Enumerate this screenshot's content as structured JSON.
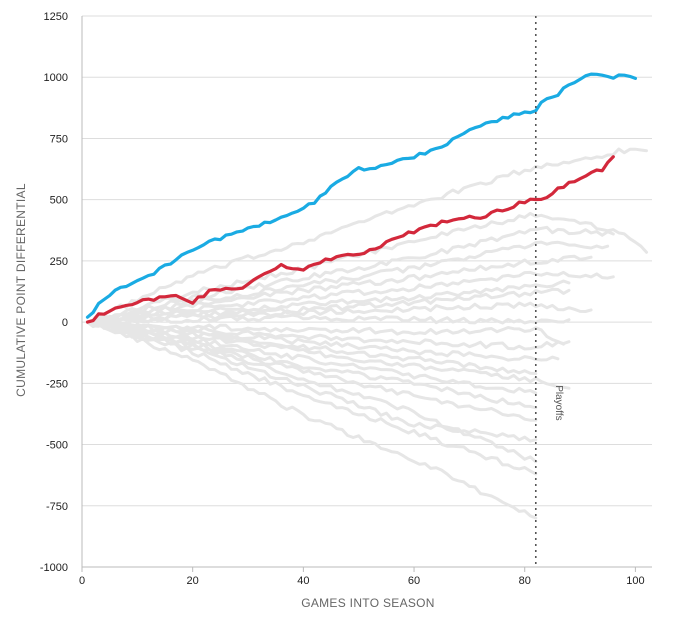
{
  "chart_data": {
    "type": "line",
    "title": "",
    "xlabel": "GAMES INTO SEASON",
    "ylabel": "CUMULATIVE POINT DIFFERENTIAL",
    "xlim": [
      0,
      103
    ],
    "ylim": [
      -1000,
      1250
    ],
    "xticks": [
      0,
      20,
      40,
      60,
      80,
      100
    ],
    "yticks": [
      1250,
      1000,
      750,
      500,
      250,
      0,
      -250,
      -500,
      -750,
      -1000
    ],
    "grid": true,
    "annotation": {
      "label": "Playoffs",
      "x": 82
    },
    "colors": {
      "highlight_blue": "#1aabe3",
      "highlight_red": "#d3283b",
      "background_series": "#e6e6e6",
      "playoff_line": "#555555"
    },
    "highlight_series": [
      {
        "name": "blue-team",
        "color": "#1aabe3",
        "x": [
          1,
          4,
          8,
          12,
          16,
          20,
          26,
          32,
          38,
          42,
          46,
          50,
          53,
          57,
          62,
          66,
          70,
          74,
          79,
          82,
          84,
          86,
          88,
          90,
          92,
          94,
          96,
          98,
          100
        ],
        "y": [
          20,
          100,
          150,
          190,
          240,
          300,
          350,
          390,
          450,
          490,
          570,
          630,
          625,
          660,
          690,
          730,
          780,
          820,
          850,
          870,
          915,
          930,
          975,
          995,
          1005,
          1015,
          995,
          1010,
          995
        ]
      },
      {
        "name": "red-team",
        "color": "#d3283b",
        "x": [
          1,
          4,
          8,
          12,
          16,
          20,
          24,
          28,
          32,
          36,
          40,
          44,
          48,
          52,
          56,
          60,
          64,
          68,
          72,
          76,
          80,
          84,
          88,
          92,
          94,
          96
        ],
        "y": [
          0,
          40,
          70,
          90,
          110,
          80,
          140,
          130,
          180,
          230,
          220,
          250,
          270,
          290,
          340,
          370,
          400,
          420,
          430,
          460,
          490,
          510,
          570,
          610,
          625,
          675
        ]
      }
    ],
    "background_series": [
      {
        "x": [
          1,
          20,
          40,
          60,
          80,
          100,
          102
        ],
        "y": [
          0,
          190,
          330,
          480,
          620,
          710,
          700
        ]
      },
      {
        "x": [
          1,
          20,
          40,
          60,
          82,
          98,
          102
        ],
        "y": [
          0,
          120,
          220,
          330,
          440,
          370,
          285
        ]
      },
      {
        "x": [
          1,
          20,
          40,
          60,
          82,
          96
        ],
        "y": [
          0,
          100,
          180,
          260,
          380,
          360
        ]
      },
      {
        "x": [
          1,
          20,
          40,
          60,
          82,
          95
        ],
        "y": [
          0,
          80,
          150,
          220,
          320,
          310
        ]
      },
      {
        "x": [
          1,
          20,
          40,
          60,
          82,
          92
        ],
        "y": [
          0,
          70,
          130,
          180,
          250,
          265
        ]
      },
      {
        "x": [
          1,
          20,
          40,
          60,
          82,
          96
        ],
        "y": [
          0,
          50,
          100,
          140,
          200,
          185
        ]
      },
      {
        "x": [
          1,
          20,
          40,
          60,
          82,
          88
        ],
        "y": [
          0,
          40,
          70,
          100,
          150,
          160
        ]
      },
      {
        "x": [
          1,
          20,
          40,
          60,
          82,
          88
        ],
        "y": [
          0,
          30,
          50,
          80,
          120,
          130
        ]
      },
      {
        "x": [
          1,
          20,
          40,
          60,
          82,
          92
        ],
        "y": [
          0,
          20,
          40,
          55,
          70,
          50
        ]
      },
      {
        "x": [
          1,
          20,
          40,
          60,
          82,
          88
        ],
        "y": [
          0,
          10,
          20,
          10,
          0,
          10
        ]
      },
      {
        "x": [
          1,
          20,
          40,
          60,
          82,
          87
        ],
        "y": [
          0,
          -20,
          -30,
          -40,
          -30,
          -90
        ]
      },
      {
        "x": [
          1,
          20,
          40,
          60,
          80,
          88
        ],
        "y": [
          0,
          -30,
          -60,
          -80,
          -100,
          -80
        ]
      },
      {
        "x": [
          1,
          20,
          40,
          60,
          80,
          86
        ],
        "y": [
          0,
          -40,
          -80,
          -120,
          -150,
          -150
        ]
      },
      {
        "x": [
          1,
          20,
          40,
          60,
          82
        ],
        "y": [
          0,
          -50,
          -100,
          -150,
          -210
        ]
      },
      {
        "x": [
          1,
          20,
          40,
          60,
          80,
          88
        ],
        "y": [
          0,
          -60,
          -120,
          -180,
          -230,
          -270
        ]
      },
      {
        "x": [
          1,
          20,
          40,
          60,
          82
        ],
        "y": [
          0,
          -70,
          -150,
          -220,
          -290
        ]
      },
      {
        "x": [
          1,
          20,
          40,
          60,
          82
        ],
        "y": [
          0,
          -80,
          -180,
          -250,
          -350
        ]
      },
      {
        "x": [
          1,
          20,
          40,
          60,
          82
        ],
        "y": [
          0,
          -90,
          -200,
          -300,
          -400
        ]
      },
      {
        "x": [
          1,
          20,
          40,
          60,
          82
        ],
        "y": [
          0,
          -100,
          -230,
          -370,
          -570
        ]
      },
      {
        "x": [
          1,
          20,
          40,
          60,
          82
        ],
        "y": [
          0,
          -120,
          -300,
          -450,
          -620
        ]
      },
      {
        "x": [
          1,
          20,
          40,
          60,
          82
        ],
        "y": [
          0,
          -150,
          -380,
          -560,
          -800
        ]
      },
      {
        "x": [
          1,
          20,
          40,
          60,
          82
        ],
        "y": [
          0,
          -110,
          -260,
          -420,
          -480
        ]
      }
    ]
  }
}
